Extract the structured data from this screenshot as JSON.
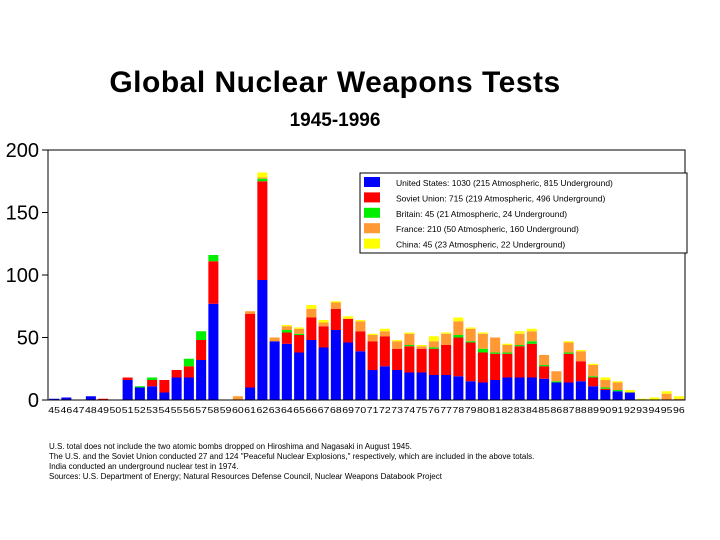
{
  "chart_data": {
    "type": "bar",
    "stacked": true,
    "title": "Global Nuclear Weapons Tests",
    "subtitle": "1945-1996",
    "ylim": [
      0,
      200
    ],
    "yticks": [
      0,
      50,
      100,
      150,
      200
    ],
    "categories": [
      "45",
      "46",
      "47",
      "48",
      "49",
      "50",
      "51",
      "52",
      "53",
      "54",
      "55",
      "56",
      "57",
      "58",
      "59",
      "60",
      "61",
      "62",
      "63",
      "64",
      "65",
      "66",
      "67",
      "68",
      "69",
      "70",
      "71",
      "72",
      "73",
      "74",
      "75",
      "76",
      "77",
      "78",
      "79",
      "80",
      "81",
      "82",
      "83",
      "84",
      "85",
      "86",
      "87",
      "88",
      "89",
      "90",
      "91",
      "92",
      "93",
      "94",
      "95",
      "96"
    ],
    "xtick_labels": [
      "45",
      "46",
      "47",
      "48",
      "49",
      "50",
      "51",
      "52",
      "53",
      "54",
      "55",
      "56",
      "57",
      "58",
      "59",
      "60",
      "61",
      "62",
      "63",
      "64",
      "65",
      "66",
      "67",
      "68",
      "69",
      "70",
      "71",
      "72",
      "73",
      "74",
      "75",
      "76",
      "77",
      "78",
      "79",
      "80",
      "81",
      "82",
      "83",
      "84",
      "85",
      "86",
      "87",
      "88",
      "89",
      "90",
      "91",
      "92",
      "93",
      "94",
      "95",
      "96"
    ],
    "series": [
      {
        "name": "United States",
        "color": "#0000ff",
        "values": [
          1,
          2,
          0,
          3,
          0,
          0,
          16,
          10,
          11,
          6,
          18,
          18,
          32,
          77,
          0,
          0,
          10,
          96,
          47,
          45,
          38,
          48,
          42,
          56,
          46,
          39,
          24,
          27,
          24,
          22,
          22,
          20,
          20,
          19,
          15,
          14,
          16,
          18,
          18,
          18,
          17,
          14,
          14,
          15,
          11,
          8,
          7,
          6,
          0,
          0,
          0,
          0
        ]
      },
      {
        "name": "Soviet Union",
        "color": "#ff0000",
        "values": [
          0,
          0,
          0,
          0,
          1,
          0,
          2,
          0,
          5,
          10,
          6,
          9,
          16,
          34,
          0,
          0,
          59,
          79,
          0,
          9,
          14,
          18,
          17,
          17,
          19,
          16,
          23,
          24,
          17,
          21,
          19,
          21,
          24,
          31,
          31,
          24,
          21,
          19,
          25,
          27,
          10,
          0,
          23,
          16,
          7,
          1,
          0,
          0,
          0,
          0,
          0,
          0
        ]
      },
      {
        "name": "Britain",
        "color": "#00ee00",
        "values": [
          0,
          0,
          0,
          0,
          0,
          0,
          0,
          1,
          2,
          0,
          0,
          6,
          7,
          5,
          0,
          0,
          0,
          2,
          0,
          2,
          1,
          0,
          0,
          0,
          0,
          0,
          0,
          0,
          0,
          1,
          0,
          1,
          0,
          2,
          1,
          3,
          1,
          1,
          1,
          2,
          1,
          1,
          1,
          0,
          1,
          1,
          1,
          0,
          0,
          0,
          0,
          0
        ]
      },
      {
        "name": "France",
        "color": "#ff9933",
        "values": [
          0,
          0,
          0,
          0,
          0,
          0,
          0,
          0,
          0,
          0,
          0,
          0,
          0,
          0,
          0,
          3,
          2,
          1,
          3,
          3,
          4,
          7,
          3,
          5,
          0,
          8,
          5,
          4,
          6,
          9,
          2,
          5,
          9,
          11,
          10,
          12,
          12,
          6,
          9,
          8,
          8,
          8,
          8,
          8,
          9,
          6,
          6,
          0,
          0,
          0,
          5,
          1
        ]
      },
      {
        "name": "China",
        "color": "#ffff00",
        "values": [
          0,
          0,
          0,
          0,
          0,
          0,
          0,
          0,
          0,
          0,
          0,
          0,
          0,
          0,
          0,
          0,
          0,
          4,
          0,
          1,
          1,
          3,
          2,
          1,
          2,
          1,
          1,
          2,
          1,
          1,
          1,
          4,
          1,
          3,
          1,
          1,
          0,
          1,
          2,
          2,
          0,
          0,
          1,
          1,
          1,
          2,
          1,
          2,
          1,
          2,
          2,
          2
        ]
      }
    ],
    "legend_position": "top-right",
    "legend": [
      "United States: 1030 (215 Atmospheric, 815 Underground)",
      "Soviet Union: 715 (219 Atmospheric, 496 Underground)",
      "Britain: 45 (21 Atmospheric, 24 Underground)",
      "France: 210 (50 Atmospheric, 160 Underground)",
      "China: 45 (23 Atmospheric, 22 Underground)"
    ]
  },
  "footnotes": [
    "U.S. total does not include the two atomic bombs dropped on Hiroshima and Nagasaki in August 1945.",
    "The U.S. and the Soviet Union conducted 27 and 124 \"Peaceful Nuclear Explosions,\" respectively, which are included in the above totals.",
    "India conducted an underground nuclear test in 1974.",
    "Sources: U.S. Department of Energy; Natural Resources Defense Council, Nuclear Weapons Databook Project"
  ]
}
